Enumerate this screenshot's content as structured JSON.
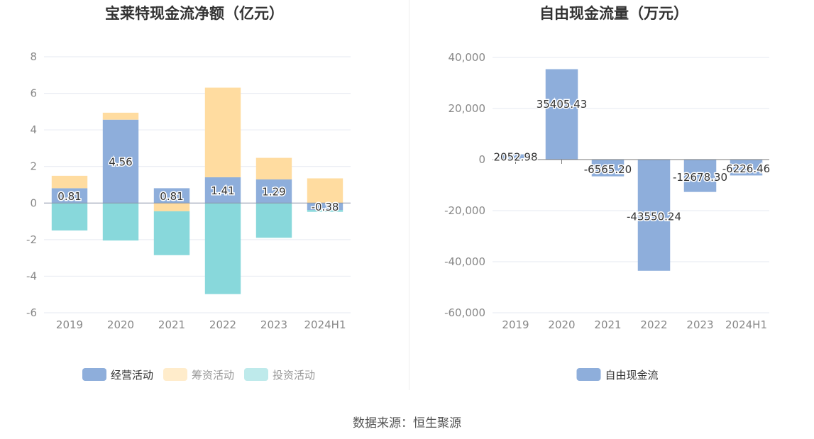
{
  "source": "数据来源：恒生聚源",
  "chart_data": [
    {
      "type": "bar",
      "stacked": true,
      "title": "宝莱特现金流净额（亿元）",
      "categories": [
        "2019",
        "2020",
        "2021",
        "2022",
        "2023",
        "2024H1"
      ],
      "ylim": [
        -6,
        8
      ],
      "yticks": [
        -6,
        -4,
        -2,
        0,
        2,
        4,
        6,
        8
      ],
      "grid": true,
      "legend_position": "bottom",
      "series": [
        {
          "name": "经营活动",
          "color": "#8eaedb",
          "values": [
            0.81,
            4.56,
            0.81,
            1.41,
            1.29,
            -0.38
          ],
          "labels": [
            "0.81",
            "4.56",
            "0.81",
            "1.41",
            "1.29",
            "-0.38"
          ]
        },
        {
          "name": "筹资活动",
          "color": "#ffdca0",
          "values": [
            0.68,
            0.38,
            -0.45,
            4.9,
            1.18,
            1.35
          ]
        },
        {
          "name": "投资活动",
          "color": "#88d8db",
          "values": [
            -1.5,
            -2.05,
            -2.4,
            -4.98,
            -1.9,
            -0.1
          ]
        }
      ]
    },
    {
      "type": "bar",
      "title": "自由现金流量（万元）",
      "categories": [
        "2019",
        "2020",
        "2021",
        "2022",
        "2023",
        "2024H1"
      ],
      "ylim": [
        -60000,
        40000
      ],
      "yticks": [
        -60000,
        -40000,
        -20000,
        0,
        20000,
        40000
      ],
      "ytick_labels": [
        "-60,000",
        "-40,000",
        "-20,000",
        "0",
        "20,000",
        "40,000"
      ],
      "grid": true,
      "legend_position": "bottom",
      "series": [
        {
          "name": "自由现金流",
          "color": "#8eaedb",
          "values": [
            2052.98,
            35405.43,
            -6565.2,
            -43550.24,
            -12678.3,
            -6226.46
          ],
          "labels": [
            "2052.98",
            "35405.43",
            "-6565.20",
            "-43550.24",
            "-12678.30",
            "-6226.46"
          ]
        }
      ]
    }
  ]
}
